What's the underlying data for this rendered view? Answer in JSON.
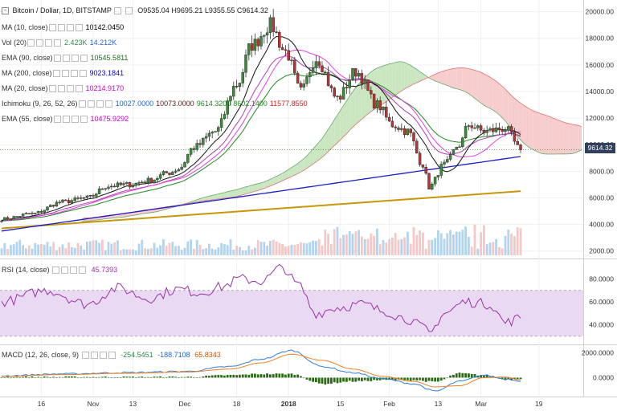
{
  "header": {
    "symbol": "Bitcoin / Dollar, 1D, BITSTAMP",
    "ohlc": "O9535.04  H9695.21  L9355.55  C9614.32"
  },
  "indicators": [
    {
      "label": "MA (10, close)",
      "values": [
        "10142.0450"
      ],
      "colors": [
        "#000000"
      ]
    },
    {
      "label": "Vol (20)",
      "values": [
        "2.423K",
        "14.212K"
      ],
      "colors": [
        "#2a8a4a",
        "#2a62c9"
      ]
    },
    {
      "label": "EMA (90, close)",
      "values": [
        "10545.5811"
      ],
      "colors": [
        "#1f6e1f"
      ]
    },
    {
      "label": "MA (200, close)",
      "values": [
        "9023.1841"
      ],
      "colors": [
        "#0000cc"
      ]
    },
    {
      "label": "MA (20, close)",
      "values": [
        "10214.9170"
      ],
      "colors": [
        "#cc00cc"
      ]
    },
    {
      "label": "Ichimoku (9, 26, 52, 26)",
      "values": [
        "10027.0000",
        "10073.0000",
        "9614.3200",
        "8602.1400",
        "11577.8550"
      ],
      "colors": [
        "#2266cc",
        "#662222",
        "#228822",
        "#228822",
        "#cc2222"
      ]
    },
    {
      "label": "EMA (55, close)",
      "values": [
        "10475.9292"
      ],
      "colors": [
        "#cc00cc"
      ]
    }
  ],
  "rsi": {
    "label": "RSI (14, close)",
    "value": "45.7393"
  },
  "macd": {
    "label": "MACD (12, 26, close, 9)",
    "values": [
      "-254.5451",
      "-188.7108",
      "65.8343"
    ],
    "colors": [
      "#2a8a4a",
      "#2266cc",
      "#cc5500"
    ]
  },
  "price_tag": "9614.32",
  "colors": {
    "up": "#3a8a3a",
    "down": "#c03030",
    "cloud_green": "#c9e6c1",
    "cloud_red": "#f6cccc",
    "rsi_line": "#9933aa",
    "rsi_band": "#e9d9f3",
    "macd_line": "#2f7ed8",
    "signal_line": "#f08020",
    "hist": "#2e6b17"
  },
  "chart_data": [
    {
      "type": "candlestick",
      "title": "Bitcoin / Dollar, 1D, BITSTAMP",
      "y_ticks": [
        "20000.00",
        "18000.00",
        "16000.00",
        "14000.00",
        "12000.00",
        "10000.00",
        "8000.00",
        "6000.00",
        "4000.00",
        "2000.00"
      ],
      "ylim": [
        1800,
        20400
      ],
      "x_ticks": [
        "16",
        "Nov",
        "13",
        "Dec",
        "18",
        "2018",
        "15",
        "Feb",
        "13",
        "Mar",
        "19"
      ],
      "close_anchor_days": [
        0,
        10,
        20,
        28,
        35,
        42,
        48,
        55,
        58,
        63,
        70,
        77,
        82,
        88,
        93,
        98,
        103,
        110,
        116,
        123,
        128,
        133,
        138,
        140,
        145,
        150,
        153,
        158,
        165,
        170
      ],
      "close_anchor_values": [
        4400,
        4800,
        5700,
        6000,
        6900,
        7000,
        7300,
        7900,
        8200,
        9800,
        11000,
        14500,
        17500,
        19000,
        17000,
        14000,
        16500,
        13500,
        15500,
        13000,
        11500,
        11000,
        8500,
        6800,
        8500,
        10000,
        11500,
        11000,
        11200,
        9614
      ],
      "trendline": {
        "from": [
          0,
          3700
        ],
        "to": [
          170,
          6500
        ]
      },
      "last_close": 9614.32
    },
    {
      "type": "line",
      "title": "RSI (14, close)",
      "y_ticks": [
        "80.0000",
        "60.0000",
        "40.0000"
      ],
      "ylim": [
        25,
        95
      ],
      "band": [
        30,
        70
      ],
      "anchor_days": [
        0,
        15,
        28,
        38,
        48,
        58,
        65,
        72,
        78,
        85,
        92,
        97,
        103,
        110,
        118,
        125,
        133,
        138,
        140,
        145,
        152,
        160,
        165,
        170
      ],
      "anchor_values": [
        60,
        70,
        58,
        72,
        63,
        71,
        68,
        73,
        80,
        78,
        90,
        75,
        50,
        55,
        58,
        52,
        45,
        38,
        32,
        50,
        60,
        58,
        42,
        45.74
      ]
    },
    {
      "type": "line",
      "title": "MACD (12, 26, close, 9)",
      "y_ticks": [
        "2000.0000",
        "0.0000"
      ],
      "ylim": [
        -1400,
        2500
      ],
      "series": [
        {
          "name": "MACD",
          "anchor_days": [
            0,
            20,
            40,
            60,
            75,
            85,
            95,
            105,
            115,
            125,
            135,
            142,
            150,
            158,
            165,
            170
          ],
          "anchor_values": [
            150,
            300,
            400,
            500,
            900,
            1500,
            2200,
            900,
            400,
            -100,
            -500,
            -1100,
            -300,
            200,
            -100,
            -254.5
          ]
        },
        {
          "name": "Signal",
          "anchor_days": [
            0,
            20,
            40,
            60,
            75,
            85,
            95,
            105,
            115,
            125,
            135,
            142,
            150,
            158,
            165,
            170
          ],
          "anchor_values": [
            100,
            250,
            350,
            450,
            700,
            1200,
            1900,
            1400,
            700,
            100,
            -300,
            -750,
            -650,
            0,
            50,
            -188.7
          ]
        }
      ],
      "last_histogram": 65.83
    }
  ]
}
